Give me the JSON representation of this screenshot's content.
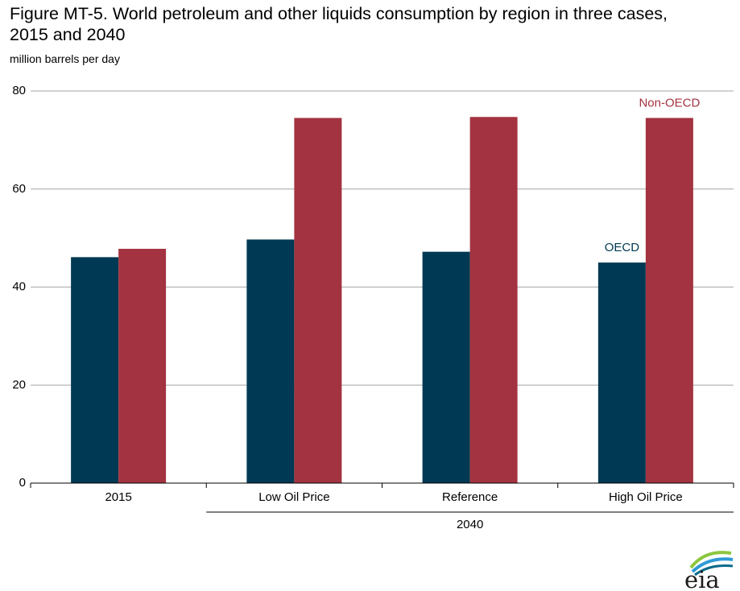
{
  "title_line1": "Figure MT-5. World petroleum and other liquids consumption by region in three cases,",
  "title_line2": "2015 and 2040",
  "units": "million barrels per day",
  "logo_text": "eia",
  "colors": {
    "OECD": "#003953",
    "Non-OECD": "#a33340",
    "grid": "#a6a6a6",
    "axis": "#000000"
  },
  "chart_data": {
    "type": "bar",
    "categories": [
      "2015",
      "Low Oil Price",
      "Reference",
      "High Oil Price"
    ],
    "group_label": "2040",
    "group_spans_categories": [
      "Low Oil Price",
      "Reference",
      "High Oil Price"
    ],
    "series": [
      {
        "name": "OECD",
        "values": [
          46.1,
          49.7,
          47.2,
          45.0
        ]
      },
      {
        "name": "Non-OECD",
        "values": [
          47.8,
          74.5,
          74.7,
          74.5
        ]
      }
    ],
    "ylim": [
      0,
      80
    ],
    "yticks": [
      0,
      20,
      40,
      60,
      80
    ],
    "ylabel": "million barrels per day",
    "grid": true,
    "legend": "inline labels above the High Oil Price bars"
  }
}
